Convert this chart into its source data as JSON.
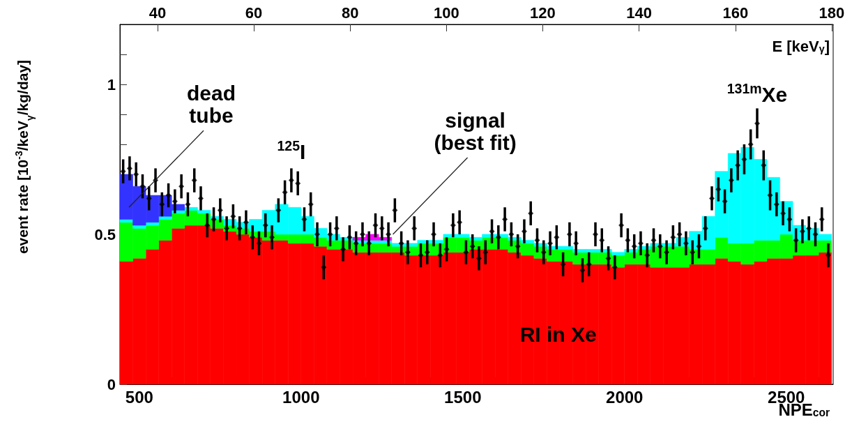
{
  "chart_data": {
    "type": "bar",
    "stacked": true,
    "grid": false,
    "ylabel": "event rate [10$^{-3}$/keV$_{γ}$/kg/day]",
    "xlabel": "NPE$_{cor}$",
    "x2label": "E [keV$_{γ}$]",
    "xlim": [
      440,
      2645
    ],
    "xticks": [
      500,
      {
        "value": 600,
        "label": null
      },
      {
        "value": 700,
        "label": null
      },
      {
        "value": 800,
        "label": null
      },
      {
        "value": 900,
        "label": null
      },
      1000,
      {
        "value": 1100,
        "label": null
      },
      {
        "value": 1200,
        "label": null
      },
      {
        "value": 1300,
        "label": null
      },
      {
        "value": 1400,
        "label": null
      },
      1500,
      {
        "value": 1600,
        "label": null
      },
      {
        "value": 1700,
        "label": null
      },
      {
        "value": 1800,
        "label": null
      },
      {
        "value": 1900,
        "label": null
      },
      2000,
      {
        "value": 2100,
        "label": null
      },
      {
        "value": 2200,
        "label": null
      },
      {
        "value": 2300,
        "label": null
      },
      {
        "value": 2400,
        "label": null
      },
      2500,
      {
        "value": 2600,
        "label": null
      }
    ],
    "x2lim": [
      32.2,
      180.3
    ],
    "x2ticks": [
      40,
      60,
      80,
      100,
      120,
      140,
      160,
      180
    ],
    "ylim": [
      0,
      1.2
    ],
    "yticks": [
      0,
      {
        "value": 0.1,
        "label": null
      },
      {
        "value": 0.2,
        "label": null
      },
      {
        "value": 0.3,
        "label": null
      },
      {
        "value": 0.4,
        "label": null
      },
      0.5,
      {
        "value": 0.6,
        "label": null
      },
      {
        "value": 0.7,
        "label": null
      },
      {
        "value": 0.8,
        "label": null
      },
      {
        "value": 0.9,
        "label": null
      },
      1,
      {
        "value": 1.1,
        "label": null
      }
    ],
    "x": [
      460,
      500,
      540,
      580,
      620,
      660,
      700,
      740,
      780,
      820,
      860,
      900,
      940,
      980,
      1020,
      1060,
      1100,
      1140,
      1180,
      1220,
      1260,
      1300,
      1340,
      1380,
      1420,
      1460,
      1500,
      1540,
      1580,
      1620,
      1660,
      1700,
      1740,
      1780,
      1820,
      1860,
      1900,
      1940,
      1980,
      2020,
      2060,
      2100,
      2140,
      2180,
      2220,
      2260,
      2300,
      2340,
      2380,
      2420,
      2460,
      2500,
      2540,
      2580,
      2620
    ],
    "series": [
      {
        "color": "#ff0000",
        "values": [
          0.41,
          0.42,
          0.45,
          0.48,
          0.52,
          0.53,
          0.53,
          0.52,
          0.51,
          0.5,
          0.49,
          0.48,
          0.48,
          0.47,
          0.47,
          0.46,
          0.45,
          0.45,
          0.44,
          0.44,
          0.44,
          0.44,
          0.43,
          0.43,
          0.43,
          0.44,
          0.44,
          0.45,
          0.45,
          0.45,
          0.44,
          0.43,
          0.42,
          0.41,
          0.41,
          0.4,
          0.4,
          0.4,
          0.39,
          0.4,
          0.4,
          0.39,
          0.39,
          0.39,
          0.4,
          0.4,
          0.42,
          0.41,
          0.4,
          0.41,
          0.42,
          0.42,
          0.43,
          0.43,
          0.44
        ]
      },
      {
        "color": "#00ff00",
        "values": [
          0.13,
          0.1,
          0.08,
          0.07,
          0.05,
          0.05,
          0.04,
          0.03,
          0.02,
          0.02,
          0.02,
          0.03,
          0.02,
          0.03,
          0.03,
          0.03,
          0.03,
          0.03,
          0.03,
          0.03,
          0.03,
          0.02,
          0.03,
          0.04,
          0.04,
          0.05,
          0.05,
          0.03,
          0.04,
          0.04,
          0.04,
          0.04,
          0.04,
          0.04,
          0.04,
          0.04,
          0.04,
          0.04,
          0.04,
          0.04,
          0.05,
          0.07,
          0.07,
          0.07,
          0.05,
          0.05,
          0.07,
          0.06,
          0.07,
          0.07,
          0.06,
          0.08,
          0.05,
          0.05,
          0.04
        ]
      },
      {
        "color": "#00ffff",
        "values": [
          0.01,
          0.01,
          0.01,
          0.01,
          0.01,
          0.01,
          0.01,
          0.01,
          0.02,
          0.02,
          0.04,
          0.07,
          0.1,
          0.09,
          0.06,
          0.03,
          0.02,
          0.01,
          0.01,
          0.01,
          0.01,
          0.01,
          0.01,
          0.01,
          0.01,
          0.01,
          0.01,
          0.01,
          0.01,
          0.01,
          0.01,
          0.01,
          0.01,
          0.01,
          0.01,
          0.01,
          0.01,
          0.01,
          0.01,
          0.01,
          0.01,
          0.01,
          0.01,
          0.03,
          0.06,
          0.11,
          0.22,
          0.3,
          0.32,
          0.27,
          0.21,
          0.11,
          0.05,
          0.04,
          0.02
        ]
      },
      {
        "color": "#ff00ff",
        "values": [
          null,
          null,
          null,
          null,
          null,
          null,
          null,
          null,
          null,
          null,
          null,
          null,
          null,
          null,
          null,
          null,
          null,
          null,
          0.01,
          0.02,
          0.01,
          null,
          null,
          null,
          null,
          null,
          null,
          null,
          null,
          null,
          null,
          null,
          null,
          null,
          null,
          null,
          null,
          null,
          null,
          null,
          null,
          null,
          null,
          null,
          null,
          null,
          null,
          null,
          null,
          null,
          null,
          null,
          null,
          null,
          null
        ]
      },
      {
        "color": "#3333ff",
        "values": [
          0.15,
          0.13,
          0.09,
          0.07,
          0.02,
          null,
          null,
          null,
          null,
          null,
          null,
          null,
          null,
          null,
          null,
          null,
          null,
          null,
          null,
          null,
          null,
          null,
          null,
          null,
          null,
          null,
          null,
          null,
          null,
          null,
          null,
          null,
          null,
          null,
          null,
          null,
          null,
          null,
          null,
          null,
          null,
          null,
          null,
          null,
          null,
          null,
          null,
          null,
          null,
          null,
          null,
          null,
          null,
          null,
          null
        ]
      },
      {
        "type": "scatter",
        "color": "#000000",
        "marker": "diamond",
        "x": [
          450,
          470,
          490,
          510,
          530,
          550,
          570,
          590,
          610,
          630,
          650,
          670,
          690,
          710,
          730,
          750,
          770,
          790,
          810,
          830,
          850,
          870,
          890,
          910,
          930,
          950,
          970,
          990,
          1010,
          1030,
          1050,
          1070,
          1090,
          1110,
          1130,
          1150,
          1170,
          1190,
          1210,
          1230,
          1250,
          1270,
          1290,
          1310,
          1330,
          1350,
          1370,
          1390,
          1410,
          1430,
          1450,
          1470,
          1490,
          1510,
          1530,
          1550,
          1570,
          1590,
          1610,
          1630,
          1650,
          1670,
          1690,
          1710,
          1730,
          1750,
          1770,
          1790,
          1810,
          1830,
          1850,
          1870,
          1890,
          1910,
          1930,
          1950,
          1970,
          1990,
          2010,
          2030,
          2050,
          2070,
          2090,
          2110,
          2130,
          2150,
          2170,
          2190,
          2210,
          2230,
          2250,
          2270,
          2290,
          2310,
          2330,
          2350,
          2370,
          2390,
          2410,
          2430,
          2450,
          2470,
          2490,
          2510,
          2530,
          2550,
          2570,
          2590,
          2610,
          2630
        ],
        "values": [
          0.71,
          0.72,
          0.7,
          0.66,
          0.62,
          0.68,
          0.6,
          0.63,
          0.61,
          0.66,
          0.6,
          0.68,
          0.62,
          0.53,
          0.55,
          0.58,
          0.52,
          0.56,
          0.52,
          0.54,
          0.49,
          0.47,
          0.53,
          0.49,
          0.58,
          0.64,
          0.68,
          0.67,
          0.55,
          0.6,
          0.5,
          0.39,
          0.5,
          0.52,
          0.45,
          0.49,
          0.47,
          0.5,
          0.47,
          0.53,
          0.52,
          0.5,
          0.58,
          0.47,
          0.44,
          0.52,
          0.43,
          0.44,
          0.5,
          0.43,
          0.45,
          0.53,
          0.54,
          0.44,
          0.46,
          0.42,
          0.44,
          0.51,
          0.49,
          0.55,
          0.5,
          0.46,
          0.51,
          0.57,
          0.48,
          0.44,
          0.47,
          0.49,
          0.4,
          0.5,
          0.47,
          0.38,
          0.4,
          0.5,
          0.48,
          0.42,
          0.39,
          0.53,
          0.48,
          0.46,
          0.47,
          0.43,
          0.48,
          0.46,
          0.44,
          0.49,
          0.5,
          0.47,
          0.44,
          0.46,
          0.52,
          0.62,
          0.65,
          0.61,
          0.68,
          0.73,
          0.75,
          0.8,
          0.87,
          0.73,
          0.63,
          0.6,
          0.57,
          0.55,
          0.48,
          0.51,
          0.52,
          0.5,
          0.55,
          0.43
        ],
        "errors": [
          0.04,
          0.04,
          0.04,
          0.04,
          0.04,
          0.04,
          0.04,
          0.04,
          0.04,
          0.04,
          0.04,
          0.04,
          0.04,
          0.04,
          0.04,
          0.04,
          0.04,
          0.04,
          0.04,
          0.04,
          0.04,
          0.04,
          0.04,
          0.04,
          0.04,
          0.04,
          0.04,
          0.04,
          0.04,
          0.04,
          0.04,
          0.04,
          0.04,
          0.04,
          0.04,
          0.04,
          0.04,
          0.04,
          0.04,
          0.04,
          0.04,
          0.04,
          0.04,
          0.04,
          0.04,
          0.04,
          0.04,
          0.04,
          0.04,
          0.04,
          0.04,
          0.04,
          0.04,
          0.04,
          0.04,
          0.04,
          0.04,
          0.04,
          0.04,
          0.04,
          0.04,
          0.04,
          0.04,
          0.04,
          0.04,
          0.04,
          0.04,
          0.04,
          0.04,
          0.04,
          0.04,
          0.04,
          0.04,
          0.04,
          0.04,
          0.04,
          0.04,
          0.04,
          0.04,
          0.04,
          0.04,
          0.04,
          0.04,
          0.04,
          0.04,
          0.04,
          0.04,
          0.04,
          0.04,
          0.04,
          0.04,
          0.04,
          0.04,
          0.04,
          0.04,
          0.05,
          0.05,
          0.05,
          0.05,
          0.05,
          0.05,
          0.04,
          0.04,
          0.04,
          0.04,
          0.04,
          0.04,
          0.04,
          0.04,
          0.04
        ]
      }
    ],
    "annotations": [
      {
        "text": "dead\ntube",
        "x": 468,
        "y": 0.59
      },
      {
        "text": "$^{125}$I",
        "x": 970,
        "y": 0.68
      },
      {
        "text": "signal\n(best fit)",
        "x": 1284,
        "y": 0.5
      },
      {
        "text": "$^{131m}$Xe",
        "x": 2410,
        "y": 0.87
      },
      {
        "text": "RI in Xe",
        "x": 1795,
        "y": 0.07
      }
    ]
  }
}
